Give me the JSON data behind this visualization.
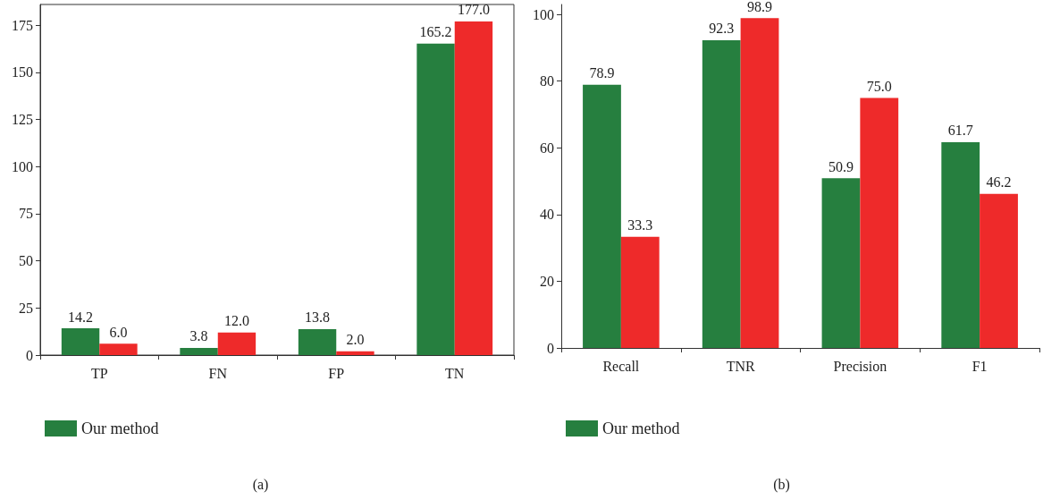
{
  "chart_data": [
    {
      "type": "bar",
      "title": "(a)",
      "categories": [
        "TP",
        "FN",
        "FP",
        "TN"
      ],
      "series": [
        {
          "name": "Our method",
          "color": "#267f3f",
          "values": [
            14.2,
            3.8,
            13.8,
            165.2
          ],
          "value_labels": [
            "14.2",
            "3.8",
            "13.8",
            "165.2"
          ]
        },
        {
          "color": "#ee2a2a",
          "values": [
            6,
            12,
            2,
            177
          ],
          "value_labels": [
            "6.0",
            "12.0",
            "2.0",
            "177.0"
          ]
        }
      ],
      "ylim": [
        0,
        186
      ],
      "yticks": [
        0,
        25,
        50,
        75,
        100,
        125,
        150,
        175
      ],
      "legend": "bottom left",
      "grid": false
    },
    {
      "type": "bar",
      "title": "(b)",
      "categories": [
        "Recall",
        "TNR",
        "Precision",
        "F1"
      ],
      "series": [
        {
          "name": "Our method",
          "color": "#267f3f",
          "values": [
            78.9,
            92.3,
            50.9,
            61.7
          ],
          "value_labels": [
            "78.9",
            "92.3",
            "50.9",
            "61.7"
          ]
        },
        {
          "color": "#ee2a2a",
          "values": [
            33.3,
            98.9,
            75,
            46.2
          ],
          "value_labels": [
            "33.3",
            "98.9",
            "75.0",
            "46.2"
          ]
        }
      ],
      "ylim": [
        0,
        103
      ],
      "yticks": [
        0,
        20,
        40,
        60,
        80,
        100
      ],
      "legend": "bottom left",
      "grid": false
    }
  ]
}
